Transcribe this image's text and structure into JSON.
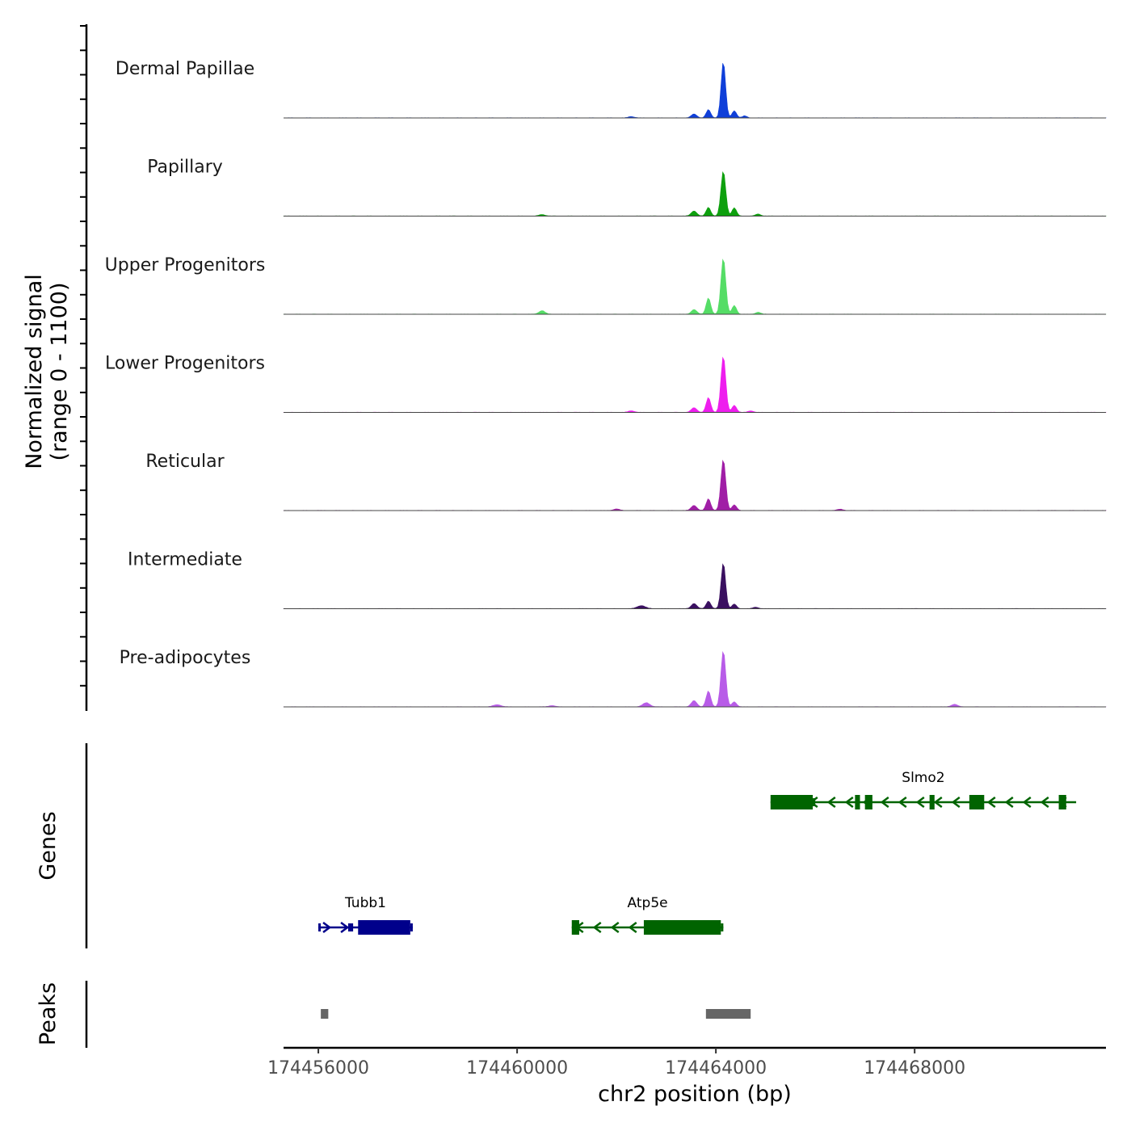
{
  "chart_data": {
    "type": "area",
    "title": "",
    "chromosome": "chr2",
    "xlabel": "chr2 position (bp)",
    "xlim": [
      174455300,
      174471850
    ],
    "x_ticks": [
      174456000,
      174460000,
      174464000,
      174468000
    ],
    "x_tick_labels": [
      "174456000",
      "174460000",
      "174464000",
      "174468000"
    ],
    "signal_panel": {
      "ylabel_line1": "Normalized signal",
      "ylabel_line2": "(range 0 - 1100)",
      "ylim": [
        0,
        1100
      ]
    },
    "tracks": [
      {
        "name": "Dermal Papillae",
        "color": "#0f3fd9",
        "peaks": [
          [
            174464150,
            1100,
            45
          ],
          [
            174463850,
            160,
            45
          ],
          [
            174463560,
            75,
            55
          ],
          [
            174464370,
            140,
            45
          ],
          [
            174464580,
            40,
            45
          ],
          [
            174462300,
            25,
            60
          ]
        ]
      },
      {
        "name": "Papillary",
        "color": "#0ea00e",
        "peaks": [
          [
            174464150,
            880,
            48
          ],
          [
            174463850,
            170,
            45
          ],
          [
            174463560,
            100,
            55
          ],
          [
            174464370,
            160,
            45
          ],
          [
            174464850,
            40,
            50
          ],
          [
            174460500,
            30,
            60
          ]
        ]
      },
      {
        "name": "Upper Progenitors",
        "color": "#55dd66",
        "peaks": [
          [
            174464150,
            1100,
            48
          ],
          [
            174463850,
            320,
            45
          ],
          [
            174463560,
            90,
            55
          ],
          [
            174464370,
            170,
            45
          ],
          [
            174460500,
            70,
            60
          ],
          [
            174464850,
            40,
            50
          ]
        ]
      },
      {
        "name": "Lower Progenitors",
        "color": "#ee1eee",
        "peaks": [
          [
            174464150,
            1100,
            48
          ],
          [
            174463850,
            290,
            45
          ],
          [
            174463560,
            90,
            55
          ],
          [
            174464370,
            140,
            45
          ],
          [
            174464700,
            30,
            50
          ],
          [
            174462300,
            30,
            60
          ]
        ]
      },
      {
        "name": "Reticular",
        "color": "#a01ea6",
        "peaks": [
          [
            174464150,
            1000,
            48
          ],
          [
            174463850,
            230,
            45
          ],
          [
            174463560,
            100,
            55
          ],
          [
            174464370,
            110,
            45
          ],
          [
            174462000,
            30,
            60
          ],
          [
            174466500,
            25,
            60
          ]
        ]
      },
      {
        "name": "Intermediate",
        "color": "#3a1060",
        "peaks": [
          [
            174464150,
            900,
            45
          ],
          [
            174463850,
            150,
            45
          ],
          [
            174463560,
            100,
            55
          ],
          [
            174464370,
            90,
            45
          ],
          [
            174462500,
            60,
            80
          ],
          [
            174464800,
            30,
            50
          ]
        ]
      },
      {
        "name": "Pre-adipocytes",
        "color": "#b85ce8",
        "peaks": [
          [
            174464150,
            1100,
            48
          ],
          [
            174463850,
            310,
            45
          ],
          [
            174463560,
            120,
            55
          ],
          [
            174464370,
            100,
            45
          ],
          [
            174462600,
            80,
            70
          ],
          [
            174459600,
            40,
            80
          ],
          [
            174460700,
            25,
            60
          ],
          [
            174468800,
            50,
            60
          ]
        ]
      }
    ],
    "genes_panel": {
      "ylabel": "Genes",
      "genes": [
        {
          "name": "Tubb1",
          "strand": "+",
          "color": "#00008b",
          "start": 174456000,
          "end": 174457900,
          "row": 2,
          "exons": [
            [
              174456000,
              174456040,
              "utr"
            ],
            [
              174456600,
              174456700,
              "utr"
            ],
            [
              174456800,
              174457850,
              "cds"
            ],
            [
              174457850,
              174457900,
              "utr"
            ]
          ]
        },
        {
          "name": "Atp5e",
          "strand": "-",
          "color": "#006400",
          "start": 174461100,
          "end": 174464150,
          "row": 2,
          "exons": [
            [
              174461100,
              174461250,
              "cds"
            ],
            [
              174462550,
              174464100,
              "cds"
            ],
            [
              174464100,
              174464150,
              "utr"
            ]
          ]
        },
        {
          "name": "Slmo2",
          "strand": "-",
          "color": "#006400",
          "start": 174465100,
          "end": 174471250,
          "row": 1,
          "exons": [
            [
              174465100,
              174465950,
              "cds"
            ],
            [
              174465950,
              174466000,
              "utr"
            ],
            [
              174466800,
              174466900,
              "cds"
            ],
            [
              174467000,
              174467150,
              "cds"
            ],
            [
              174468300,
              174468400,
              "cds"
            ],
            [
              174469100,
              174469400,
              "cds"
            ],
            [
              174470900,
              174471050,
              "cds"
            ]
          ]
        }
      ]
    },
    "peaks_panel": {
      "ylabel": "Peaks",
      "color": "#666666",
      "regions": [
        [
          174456050,
          174456200
        ],
        [
          174463800,
          174464700
        ]
      ]
    }
  }
}
